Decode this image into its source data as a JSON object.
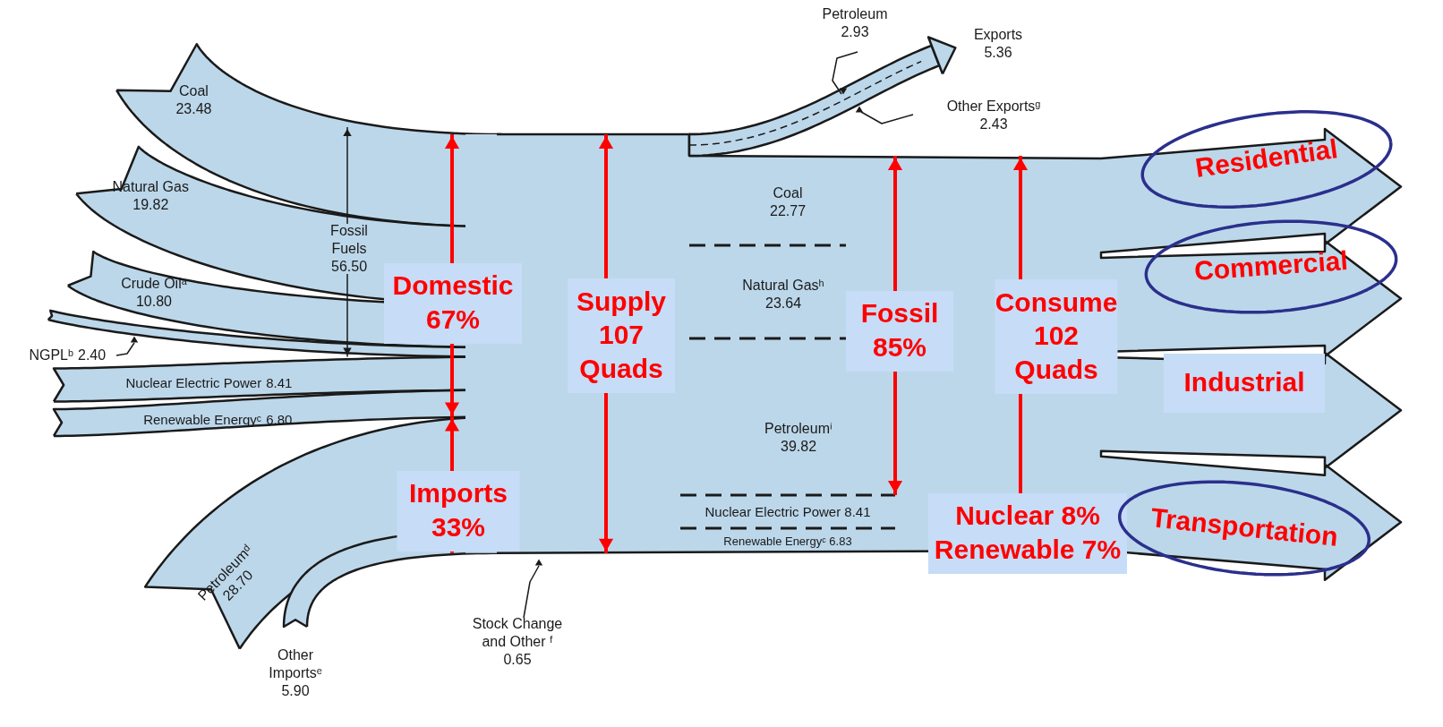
{
  "chart_data": {
    "type": "other",
    "categories": [
      "Coal",
      "Natural Gas",
      "Crude Oilᵃ",
      "NGPLᵇ",
      "Nuclear Electric Power",
      "Renewable Energyᶜ",
      "Petroleumᵈ",
      "Other Importsᵉ"
    ],
    "values": [
      23.48,
      19.82,
      10.8,
      2.4,
      8.41,
      6.8,
      28.7,
      5.9
    ],
    "value_labels": [
      "23.48",
      "19.82",
      "10.80",
      "2.40",
      "8.41",
      "6.80",
      "28.70",
      "5.90"
    ],
    "annotations": [
      "Fossil\nFuels\n56.50",
      "Petroleum\n2.93",
      "Exports\n5.36",
      "Other Exportsᵍ\n2.43",
      "Coal\n22.77",
      "Natural Gasʰ\n23.64",
      "Petroleumⁱ\n39.82",
      "Nuclear Electric Power 8.41",
      "Renewable Energyᶜ 6.83",
      "Stock Change\nand Other ᶠ\n0.65",
      "Domestic\n67%",
      "Imports\n33%",
      "Supply\n107\nQuads",
      "Fossil\n85%",
      "Consume\n102\nQuads",
      "Nuclear 8%\nRenewable 7%",
      "Residential",
      "Commercial",
      "Industrial",
      "Transportation"
    ]
  }
}
